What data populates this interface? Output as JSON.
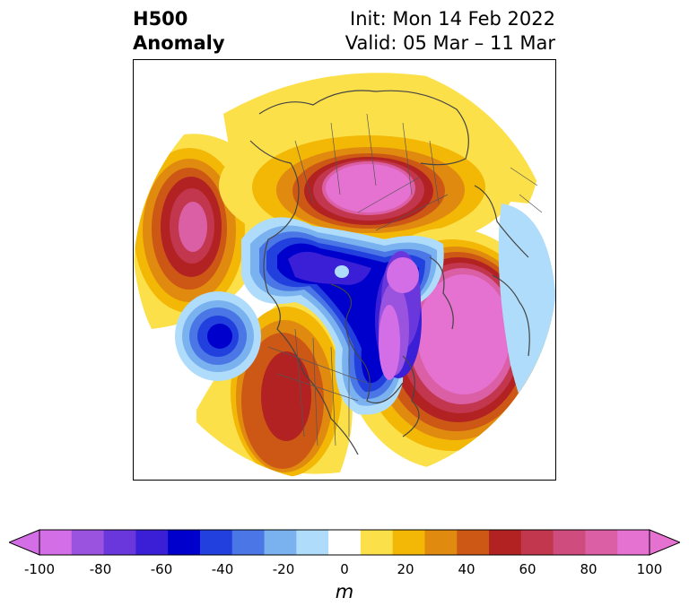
{
  "header": {
    "field": "H500",
    "kind": "Anomaly",
    "init": "Init: Mon 14 Feb 2022",
    "valid": "Valid: 05 Mar – 11 Mar"
  },
  "map": {
    "projection": "north polar stereographic",
    "coastlines": true,
    "borders": true,
    "anomaly_centers": [
      {
        "region": "North Pacific",
        "sign": "positive",
        "peak": 90
      },
      {
        "region": "Siberia / Arctic",
        "sign": "positive",
        "peak": 90
      },
      {
        "region": "Western North America",
        "sign": "positive",
        "peak": 60
      },
      {
        "region": "North Atlantic",
        "sign": "positive",
        "peak": 95
      },
      {
        "region": "Central North Pacific",
        "sign": "negative",
        "peak": -60
      },
      {
        "region": "Arctic Ocean",
        "sign": "negative",
        "peak": -70
      },
      {
        "region": "Hudson Bay / Greenland",
        "sign": "negative",
        "peak": -95
      }
    ]
  },
  "colorbar": {
    "unit": "m",
    "extend": "both",
    "tick_labels": [
      "-100",
      "-80",
      "-60",
      "-40",
      "-20",
      "0",
      "20",
      "40",
      "60",
      "80",
      "100"
    ],
    "bins": [
      -100,
      -90,
      -80,
      -70,
      -60,
      -50,
      -40,
      -30,
      -20,
      -10,
      10,
      20,
      30,
      40,
      50,
      60,
      70,
      80,
      90,
      100
    ],
    "colors": [
      "#d36ee6",
      "#9a53de",
      "#6a37dd",
      "#3a1fd6",
      "#0000cc",
      "#2240dd",
      "#4a76e6",
      "#7ab2ef",
      "#aedcfa",
      "#ffffff",
      "#fce04a",
      "#f3b705",
      "#e08a0f",
      "#cd5715",
      "#b22222",
      "#c2364e",
      "#cf4c7e",
      "#da5fa5",
      "#e571d0"
    ],
    "under_color": "#d36ee6",
    "over_color": "#e571d0"
  }
}
